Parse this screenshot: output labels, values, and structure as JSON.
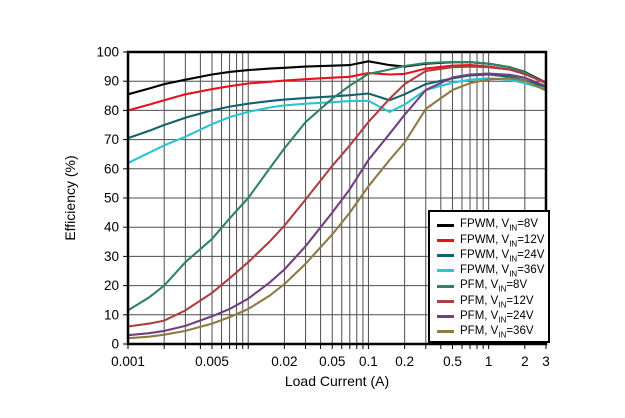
{
  "chart_data": {
    "type": "line",
    "title": "",
    "xlabel": "Load Current (A)",
    "ylabel": "Efficiency (%)",
    "x_scale": "log",
    "xlim": [
      0.001,
      3
    ],
    "ylim": [
      0,
      100
    ],
    "y_tick_step": 10,
    "grid": true,
    "legend_position": "bottom-right",
    "legend_sub_text": "IN",
    "x_tick_labels": [
      {
        "value": 0.001,
        "label": "0.001"
      },
      {
        "value": 0.005,
        "label": "0.005"
      },
      {
        "value": 0.02,
        "label": "0.02"
      },
      {
        "value": 0.05,
        "label": "0.05"
      },
      {
        "value": 0.1,
        "label": "0.1"
      },
      {
        "value": 0.2,
        "label": "0.2"
      },
      {
        "value": 0.5,
        "label": "0.5"
      },
      {
        "value": 1,
        "label": "1"
      },
      {
        "value": 2,
        "label": "2"
      },
      {
        "value": 3,
        "label": "3"
      }
    ],
    "x": [
      0.001,
      0.0015,
      0.002,
      0.003,
      0.005,
      0.007,
      0.01,
      0.015,
      0.02,
      0.03,
      0.05,
      0.07,
      0.1,
      0.15,
      0.2,
      0.3,
      0.5,
      0.7,
      1,
      1.5,
      2,
      3
    ],
    "series": [
      {
        "mode": "FPWM",
        "vin": "8V",
        "label": "FPWM, VIN=8V",
        "color": "#000000",
        "values": [
          85.5,
          87.5,
          89,
          90.5,
          92.3,
          93.2,
          93.8,
          94.3,
          94.6,
          95,
          95.3,
          95.5,
          96.8,
          95.5,
          95,
          96,
          96.5,
          96.5,
          96,
          94.8,
          93.2,
          89.5
        ]
      },
      {
        "mode": "FPWM",
        "vin": "12V",
        "label": "FPWM, VIN=12V",
        "color": "#e8101c",
        "values": [
          80,
          82,
          83.5,
          85.5,
          87.3,
          88.3,
          89.2,
          89.8,
          90.2,
          90.7,
          91.2,
          91.5,
          92.8,
          92.3,
          92.5,
          94.3,
          95.3,
          95.5,
          95,
          94,
          92.5,
          89.5
        ]
      },
      {
        "mode": "FPWM",
        "vin": "24V",
        "label": "FPWM, VIN=24V",
        "color": "#17606e",
        "values": [
          70.5,
          73,
          75,
          77.5,
          80,
          81.3,
          82.3,
          83.2,
          83.7,
          84.2,
          84.8,
          85.2,
          85.8,
          83.5,
          85.5,
          89,
          91,
          92,
          92.3,
          91.5,
          90.3,
          88
        ]
      },
      {
        "mode": "FPWM",
        "vin": "36V",
        "label": "FPWM, VIN=36V",
        "color": "#2cc3d2",
        "values": [
          62,
          65.5,
          68,
          71,
          75.3,
          77.7,
          79.5,
          81,
          81.7,
          82.3,
          82.8,
          83.2,
          83.3,
          79.5,
          82,
          87,
          89.5,
          90.5,
          91,
          90.5,
          89.3,
          87.3
        ]
      },
      {
        "mode": "PFM",
        "vin": "8V",
        "label": "PFM, VIN=8V",
        "color": "#2f8263",
        "values": [
          11.5,
          16,
          20,
          28,
          36,
          43,
          50,
          60,
          67,
          76,
          84,
          88.5,
          92.5,
          94,
          95.2,
          96.2,
          96.6,
          96.5,
          96,
          94.8,
          93,
          89.2
        ]
      },
      {
        "mode": "PFM",
        "vin": "12V",
        "label": "PFM, VIN=12V",
        "color": "#ac3f42",
        "values": [
          6,
          7,
          8,
          11.5,
          17.5,
          22.5,
          28,
          35,
          40.5,
          49.5,
          61,
          68,
          76,
          84,
          89,
          93.5,
          94.8,
          95,
          94.8,
          94,
          92.4,
          89.4
        ]
      },
      {
        "mode": "PFM",
        "vin": "24V",
        "label": "PFM, VIN=24V",
        "color": "#714082",
        "values": [
          3,
          3.7,
          4.5,
          6.2,
          9.5,
          12,
          15.5,
          21,
          25.5,
          33.5,
          45,
          53,
          63,
          72,
          78.5,
          87,
          91.3,
          92.3,
          92.6,
          92.2,
          91.2,
          88.3
        ]
      },
      {
        "mode": "PFM",
        "vin": "36V",
        "label": "PFM, VIN=36V",
        "color": "#8c7b45",
        "values": [
          2,
          2.5,
          3.2,
          4.5,
          7,
          9.2,
          12,
          16.5,
          20.5,
          27.5,
          37.5,
          45,
          54,
          63,
          69,
          80.5,
          87,
          89.3,
          90.6,
          91,
          90.2,
          86.8
        ]
      }
    ]
  },
  "colors": {
    "grid": "#4d4d4d",
    "frame": "#000000",
    "text": "#000000",
    "legend_border": "#000000",
    "legend_bg": "#ffffff"
  }
}
